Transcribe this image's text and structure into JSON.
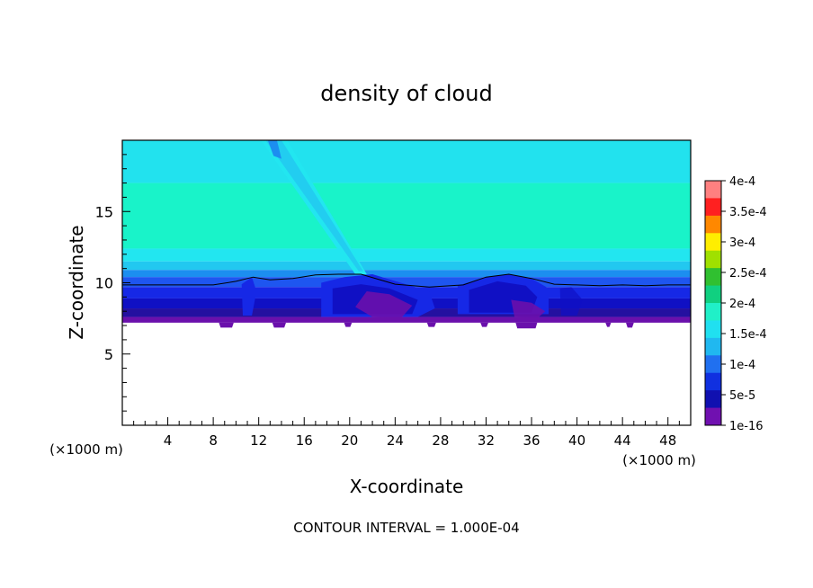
{
  "chart_data": {
    "type": "contour",
    "title": "density of cloud",
    "xlabel": "X-coordinate",
    "ylabel": "Z-coordinate",
    "x_unit_left": "(×1000 m)",
    "x_unit_right": "(×1000 m)",
    "xlim": [
      0,
      50
    ],
    "ylim": [
      0,
      20
    ],
    "xticks": [
      4,
      8,
      12,
      16,
      20,
      24,
      28,
      32,
      36,
      40,
      44,
      48
    ],
    "yticks": [
      5,
      10,
      15
    ],
    "contour_interval": "CONTOUR INTERVAL = 1.000E-04",
    "colorbar": {
      "labels": [
        "4e-4",
        "3.5e-4",
        "3e-4",
        "2.5e-4",
        "2e-4",
        "1.5e-4",
        "1e-4",
        "5e-5",
        "1e-16"
      ],
      "colors": [
        "#ff8080",
        "#ff2020",
        "#ff8800",
        "#ffee00",
        "#a0e000",
        "#30c030",
        "#10d080",
        "#20f0c8",
        "#20e0f0",
        "#20b8f0",
        "#2070f0",
        "#1030e0",
        "#1010b0",
        "#7010b0"
      ]
    },
    "field_colors": {
      "band_top": "#22e2ee",
      "band_core": "#19f3c9",
      "band_lower": "#22e6f0",
      "layer_1": "#22c8f0",
      "layer_2": "#1c8ef0",
      "layer_3": "#1e56f0",
      "layer_4": "#1628e6",
      "layer_5": "#1010c4",
      "layer_6": "#2410a0",
      "base": "#6a10ac",
      "contour_line": "#000000"
    },
    "cloud_base_z": 7.2,
    "contour_line_z": [
      9.85,
      9.85,
      9.85,
      9.85,
      9.85,
      10.1,
      10.4,
      10.2,
      10.3,
      10.55,
      10.6,
      10.6,
      9.9,
      9.7,
      9.85,
      10.4,
      10.6,
      10.3,
      9.9,
      9.85,
      9.8,
      9.85,
      9.8,
      9.85,
      9.85,
      9.85
    ],
    "contour_line_x": [
      0,
      2,
      4,
      6,
      8,
      10,
      11.5,
      13,
      15,
      17,
      19,
      21,
      24,
      27,
      30,
      32,
      34,
      36,
      38,
      40,
      42,
      44,
      46,
      48,
      49,
      50
    ]
  }
}
